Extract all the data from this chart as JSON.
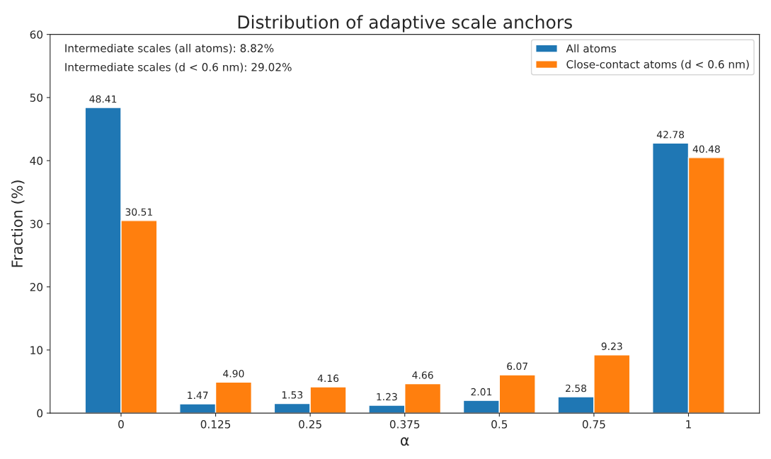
{
  "chart_data": {
    "type": "bar",
    "title": "Distribution of adaptive scale anchors",
    "xlabel": "α",
    "ylabel": "Fraction (%)",
    "categories": [
      "0",
      "0.125",
      "0.25",
      "0.375",
      "0.5",
      "0.75",
      "1"
    ],
    "series": [
      {
        "name": "All atoms",
        "color": "#1f77b4",
        "values": [
          48.41,
          1.47,
          1.53,
          1.23,
          2.01,
          2.58,
          42.78
        ],
        "value_labels": [
          "48.41",
          "1.47",
          "1.53",
          "1.23",
          "2.01",
          "2.58",
          "42.78"
        ]
      },
      {
        "name": "Close-contact atoms (d < 0.6 nm)",
        "color": "#ff7f0e",
        "values": [
          30.51,
          4.9,
          4.16,
          4.66,
          6.07,
          9.23,
          40.48
        ],
        "value_labels": [
          "30.51",
          "4.90",
          "4.16",
          "4.66",
          "6.07",
          "9.23",
          "40.48"
        ]
      }
    ],
    "ylim": [
      0,
      60
    ],
    "yticks": [
      0,
      10,
      20,
      30,
      40,
      50,
      60
    ],
    "annotations": [
      "Intermediate scales (all atoms): 8.82%",
      "Intermediate scales (d < 0.6 nm): 29.02%"
    ],
    "legend": "top right",
    "grid": false
  }
}
